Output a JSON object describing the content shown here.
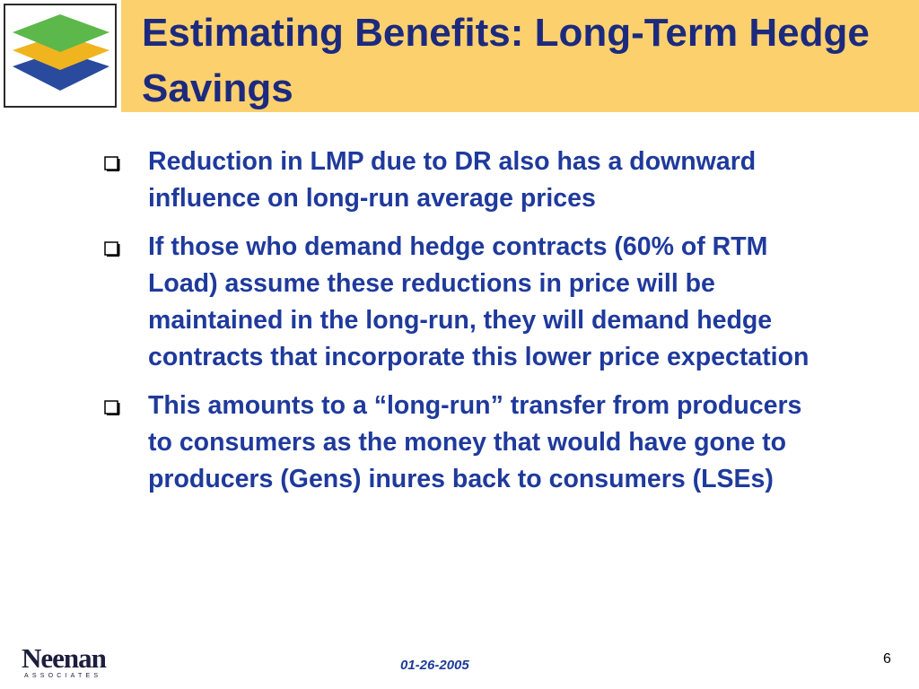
{
  "header": {
    "title": "Estimating Benefits: Long-Term Hedge Savings"
  },
  "bullets": [
    "Reduction in LMP due to DR also has a downward influence on long-run average prices",
    "If those who demand hedge contracts (60% of RTM Load) assume these reductions in price will be maintained in the long-run, they will demand hedge contracts that incorporate this lower price expectation",
    "This amounts to a “long-run” transfer from producers to consumers as the money that would have gone to producers (Gens) inures back to consumers (LSEs)"
  ],
  "footer": {
    "logo": "Neenan",
    "logo_sub": "ASSOCIATES",
    "date": "01-26-2005",
    "page": "6"
  }
}
